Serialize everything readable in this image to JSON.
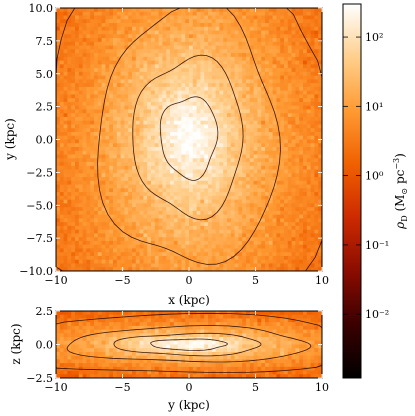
{
  "chart_data": [
    {
      "type": "heatmap",
      "panel": "face-on",
      "xlabel": "x (kpc)",
      "ylabel": "y (kpc)",
      "xlim": [
        -10,
        10
      ],
      "ylim": [
        -10,
        10
      ],
      "xticks": [
        -10,
        -5,
        0,
        5,
        10
      ],
      "yticks": [
        10.0,
        7.5,
        5.0,
        2.5,
        0.0,
        -2.5,
        -5.0,
        -7.5,
        -10.0
      ],
      "xtick_labels": [
        "−10",
        "−5",
        "0",
        "5",
        "10"
      ],
      "ytick_labels": [
        "10.0",
        "7.5",
        "5.0",
        "2.5",
        "0.0",
        "−2.5",
        "−5.0",
        "−7.5",
        "−10.0"
      ],
      "center": [
        0,
        0.2
      ],
      "core_density": 300,
      "scale_x_kpc": 1.8,
      "scale_y_kpc": 2.6,
      "contour_levels": [
        0.3,
        1,
        3,
        10,
        30,
        100
      ]
    },
    {
      "type": "heatmap",
      "panel": "edge-on",
      "xlabel": "y (kpc)",
      "ylabel": "z (kpc)",
      "xlim": [
        -10,
        10
      ],
      "ylim": [
        -2.5,
        2.5
      ],
      "xticks": [
        -10,
        -5,
        0,
        5,
        10
      ],
      "yticks": [
        2.5,
        0.0,
        -2.5
      ],
      "xtick_labels": [
        "−10",
        "−5",
        "0",
        "5",
        "10"
      ],
      "ytick_labels": [
        "2.5",
        "0.0",
        "−2.5"
      ],
      "center": [
        0,
        0
      ],
      "core_density": 300,
      "scale_x_kpc": 2.4,
      "scale_z_kpc": 0.35,
      "contour_levels": [
        0.3,
        1,
        3,
        10,
        30,
        100
      ]
    }
  ],
  "colorbar": {
    "label": "ρD (M⊙ pc−3)",
    "scale": "log",
    "range": [
      0.0012,
      300
    ],
    "ticks": [
      100,
      10,
      1,
      0.1,
      0.01
    ],
    "tick_labels": [
      "10²",
      "10¹",
      "10⁰",
      "10⁻¹",
      "10⁻²"
    ],
    "colormap": [
      "#000000",
      "#3a0000",
      "#8a0c00",
      "#cc2a00",
      "#f06000",
      "#ff9a33",
      "#ffcf8c",
      "#ffffff"
    ]
  }
}
